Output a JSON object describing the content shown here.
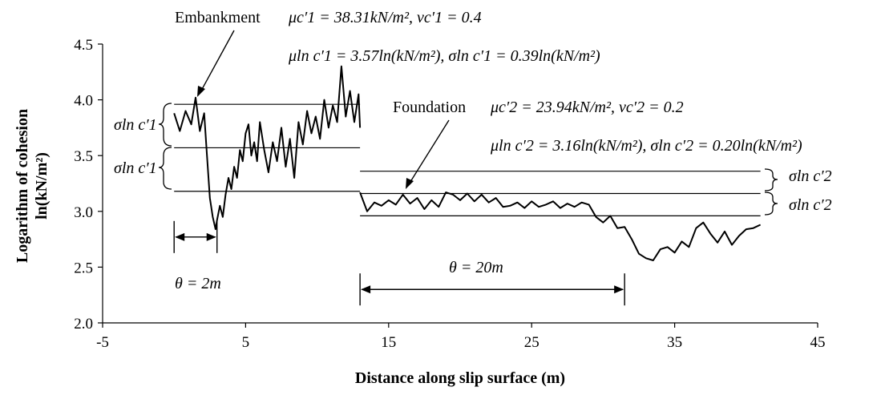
{
  "chart_data": {
    "type": "line",
    "xlabel": "Distance along slip surface (m)",
    "ylabel_line1": "Logarithm of cohesion",
    "ylabel_line2": "ln(kN/m²)",
    "xlim": [
      -5,
      45
    ],
    "ylim": [
      2.0,
      4.5
    ],
    "xticks": [
      -5,
      5,
      15,
      25,
      35,
      45
    ],
    "yticks": [
      2.0,
      2.5,
      3.0,
      3.5,
      4.0,
      4.5
    ],
    "grid": false,
    "series": [
      {
        "x": [
          0,
          0.4,
          0.8,
          1.2,
          1.5,
          1.8,
          2.1,
          2.3,
          2.5,
          2.7,
          2.9,
          3.0,
          3.2,
          3.4,
          3.6,
          3.8,
          4.0,
          4.2,
          4.4,
          4.6,
          4.8,
          5.0,
          5.2,
          5.4,
          5.6,
          5.8,
          6.0,
          6.3,
          6.6,
          6.9,
          7.2,
          7.5,
          7.8,
          8.1,
          8.4,
          8.7,
          9.0,
          9.3,
          9.6,
          9.9,
          10.2,
          10.5,
          10.8,
          11.1,
          11.4,
          11.7,
          12.0,
          12.3,
          12.6,
          12.9,
          13.0
        ],
        "y": [
          3.88,
          3.72,
          3.9,
          3.78,
          4.02,
          3.72,
          3.88,
          3.5,
          3.12,
          2.95,
          2.84,
          2.92,
          3.05,
          2.95,
          3.15,
          3.3,
          3.2,
          3.4,
          3.3,
          3.55,
          3.45,
          3.7,
          3.78,
          3.5,
          3.62,
          3.45,
          3.8,
          3.55,
          3.35,
          3.62,
          3.45,
          3.75,
          3.4,
          3.65,
          3.3,
          3.8,
          3.6,
          3.9,
          3.7,
          3.85,
          3.65,
          4.0,
          3.75,
          3.95,
          3.8,
          4.3,
          3.85,
          4.08,
          3.8,
          4.05,
          3.75
        ]
      },
      {
        "x": [
          13.0,
          13.5,
          14.0,
          14.5,
          15.0,
          15.5,
          16.0,
          16.5,
          17.0,
          17.5,
          18.0,
          18.5,
          19.0,
          19.5,
          20.0,
          20.5,
          21.0,
          21.5,
          22.0,
          22.5,
          23.0,
          23.5,
          24.0,
          24.5,
          25.0,
          25.5,
          26.0,
          26.5,
          27.0,
          27.5,
          28.0,
          28.5,
          29.0,
          29.5,
          30.0,
          30.5,
          31.0,
          31.5,
          32.0,
          32.5,
          33.0,
          33.5,
          34.0,
          34.5,
          35.0,
          35.5,
          36.0,
          36.5,
          37.0,
          37.5,
          38.0,
          38.5,
          39.0,
          39.5,
          40.0,
          40.5,
          41.0
        ],
        "y": [
          3.17,
          3.0,
          3.08,
          3.05,
          3.1,
          3.06,
          3.15,
          3.07,
          3.12,
          3.02,
          3.1,
          3.04,
          3.17,
          3.15,
          3.1,
          3.16,
          3.09,
          3.15,
          3.08,
          3.12,
          3.04,
          3.05,
          3.08,
          3.03,
          3.09,
          3.04,
          3.06,
          3.09,
          3.03,
          3.07,
          3.04,
          3.08,
          3.06,
          2.95,
          2.9,
          2.96,
          2.85,
          2.86,
          2.75,
          2.62,
          2.58,
          2.56,
          2.66,
          2.68,
          2.63,
          2.73,
          2.68,
          2.85,
          2.9,
          2.8,
          2.72,
          2.82,
          2.7,
          2.78,
          2.84,
          2.85,
          2.88
        ]
      }
    ],
    "reference_lines": [
      {
        "x0": 0,
        "x1": 13,
        "y": 3.96
      },
      {
        "x0": 0,
        "x1": 13,
        "y": 3.57
      },
      {
        "x0": 0,
        "x1": 13,
        "y": 3.18
      },
      {
        "x0": 13,
        "x1": 41,
        "y": 3.36
      },
      {
        "x0": 13,
        "x1": 41,
        "y": 3.16
      },
      {
        "x0": 13,
        "x1": 41,
        "y": 2.96
      }
    ],
    "annotations": {
      "embankment_label": "Embankment",
      "embankment_eq1": "μc′1 = 38.31kN/m², νc′1 = 0.4",
      "embankment_eq2": "μln c′1 = 3.57ln(kN/m²),  σln c′1 = 0.39ln(kN/m²)",
      "foundation_label": "Foundation",
      "foundation_eq1": "μc′2 = 23.94kN/m², νc′2 = 0.2",
      "foundation_eq2": "μln c′2 = 3.16ln(kN/m²),  σln c′2 = 0.20ln(kN/m²)",
      "sigma1": "σln c′1",
      "sigma2": "σln c′2",
      "theta1": "θ = 2m",
      "theta2": "θ = 20m"
    },
    "theta_markers": [
      {
        "x0": 0,
        "x1": 3,
        "y": 2.77
      },
      {
        "x0": 13,
        "x1": 31.5,
        "y": 2.3
      }
    ]
  }
}
